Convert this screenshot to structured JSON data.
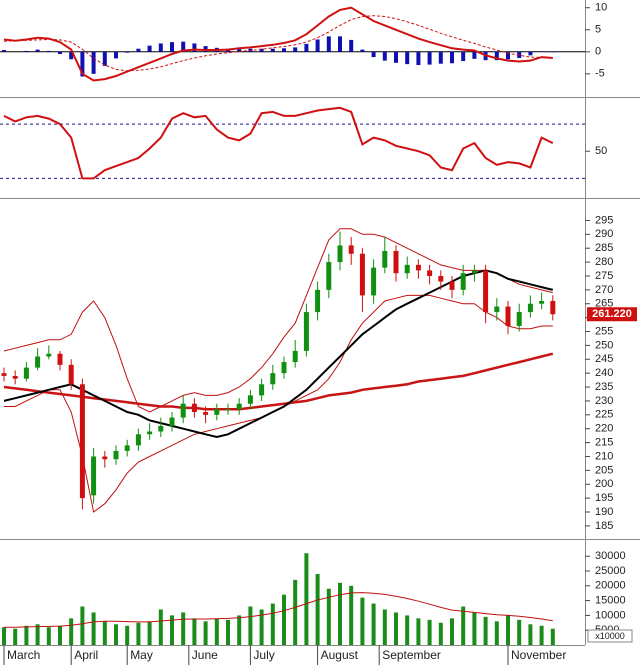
{
  "chart_data": [
    {
      "type": "macd",
      "ylim": [
        -9.8,
        11.3
      ],
      "yticks": [
        10,
        5,
        0,
        -5
      ],
      "colors": {
        "macd": "#d01010",
        "signal": "#d01010",
        "histogram": "#1010b0",
        "zero": "#000000"
      },
      "macd": [
        2.8,
        2.5,
        2.8,
        3.2,
        3,
        2.2,
        0.5,
        -5,
        -6.5,
        -6.2,
        -5.5,
        -4.5,
        -3.5,
        -2.5,
        -1.5,
        -0.5,
        0.3,
        0.5,
        0.4,
        0.4,
        0.5,
        0.8,
        1,
        1.3,
        1.6,
        2,
        2.6,
        4,
        6,
        8,
        9.5,
        10,
        8.5,
        7,
        6,
        5,
        4,
        3,
        2.2,
        1.5,
        0.8,
        0.5,
        0.3,
        -0.8,
        -1.5,
        -2,
        -2.2,
        -2,
        -1.2,
        -1.4
      ],
      "signal": [
        2.4,
        2.5,
        2.6,
        2.7,
        2.8,
        2.7,
        2.2,
        0.6,
        -1.5,
        -3,
        -4,
        -4.3,
        -4.2,
        -3.9,
        -3.4,
        -2.7,
        -2,
        -1.4,
        -0.9,
        -0.5,
        -0.2,
        0.1,
        0.3,
        0.6,
        0.9,
        1.2,
        1.6,
        2.2,
        3.2,
        4.5,
        6,
        7.3,
        8,
        8.2,
        8,
        7.5,
        6.8,
        6,
        5.1,
        4.2,
        3.4,
        2.6,
        1.9,
        1.1,
        0.4,
        -0.3,
        -0.8,
        -1.2,
        -1.3,
        -1.3
      ],
      "histogram": [
        0.4,
        0,
        0.2,
        0.5,
        0.2,
        -0.5,
        -1.7,
        -5.6,
        -5,
        -3.2,
        -1.5,
        -0.2,
        0.7,
        1.4,
        1.9,
        2.2,
        2.3,
        1.9,
        1.3,
        0.9,
        0.7,
        0.7,
        0.7,
        0.7,
        0.7,
        0.8,
        1,
        1.8,
        2.8,
        3.5,
        3.5,
        2.7,
        0.5,
        -1.2,
        -2,
        -2.5,
        -2.8,
        -3,
        -2.9,
        -2.7,
        -2.6,
        -2.1,
        -1.6,
        -1.9,
        -1.9,
        -1.7,
        -1.4,
        -0.8,
        0.1,
        -0.1
      ]
    },
    {
      "type": "rsi",
      "ylim": [
        17,
        87
      ],
      "yticks": [
        50
      ],
      "levels": [
        70,
        30
      ],
      "colors": {
        "rsi": "#d01010",
        "levels": "#1a1a8c"
      },
      "rsi": [
        76,
        72,
        75,
        76,
        74,
        70,
        60,
        30,
        30,
        36,
        39,
        42,
        45,
        52,
        60,
        74,
        78,
        75,
        76,
        66,
        60,
        58,
        63,
        78,
        79,
        76,
        76,
        78,
        80,
        81,
        82,
        79,
        55,
        60,
        58,
        54,
        52,
        50,
        47,
        38,
        36,
        52,
        56,
        45,
        40,
        42,
        41,
        38,
        60,
        56
      ]
    },
    {
      "type": "candlestick",
      "ylim": [
        181,
        302
      ],
      "yticks": [
        185,
        190,
        195,
        200,
        205,
        210,
        215,
        220,
        225,
        230,
        235,
        240,
        245,
        250,
        255,
        260,
        265,
        270,
        275,
        280,
        285,
        290,
        295
      ],
      "colors": {
        "up": "#109010",
        "down": "#d01010",
        "bands": "#c01010",
        "ma_black": "#000000",
        "ma_red": "#c81414",
        "last": "#d01010"
      },
      "open": [
        240,
        239,
        238,
        242,
        246,
        247,
        243,
        236,
        196,
        210,
        209,
        212,
        214,
        218,
        219,
        221,
        224,
        229,
        226,
        225,
        227,
        227,
        229,
        232,
        236,
        240,
        244,
        248,
        262,
        270,
        280,
        286,
        283,
        268,
        278,
        284,
        276,
        279,
        277,
        275,
        273,
        270,
        276,
        277,
        262,
        264,
        257,
        262,
        265,
        266
      ],
      "high": [
        242,
        241,
        244,
        249,
        250,
        248,
        245,
        238,
        213,
        212,
        214,
        216,
        220,
        222,
        224,
        226,
        232,
        231,
        228,
        229,
        229,
        231,
        234,
        238,
        243,
        246,
        252,
        265,
        273,
        283,
        291,
        289,
        285,
        281,
        289,
        286,
        282,
        281,
        279,
        277,
        275,
        279,
        279,
        279,
        267,
        266,
        265,
        268,
        269,
        268
      ],
      "low": [
        237,
        236,
        237,
        241,
        245,
        241,
        234,
        191,
        193,
        206,
        207,
        210,
        212,
        216,
        217,
        219,
        222,
        224,
        222,
        223,
        225,
        225,
        227,
        230,
        234,
        238,
        242,
        246,
        259,
        267,
        277,
        279,
        262,
        265,
        276,
        273,
        274,
        274,
        272,
        270,
        267,
        268,
        273,
        258,
        259,
        254,
        255,
        260,
        263,
        259
      ],
      "close": [
        239,
        238,
        242,
        246,
        247,
        243,
        236,
        195,
        210,
        209,
        212,
        214,
        218,
        219,
        221,
        224,
        229,
        226,
        225,
        227,
        227,
        229,
        232,
        236,
        240,
        244,
        248,
        262,
        270,
        280,
        286,
        283,
        268,
        278,
        284,
        276,
        279,
        277,
        275,
        273,
        270,
        276,
        277,
        262,
        264,
        257,
        262,
        265,
        266,
        261.22
      ],
      "band_upper": [
        248,
        249,
        250,
        251,
        252,
        252,
        254,
        262,
        266,
        260,
        250,
        238,
        228,
        226,
        228,
        230,
        232,
        233,
        232,
        232,
        233,
        235,
        238,
        242,
        247,
        253,
        258,
        268,
        278,
        288,
        292,
        292,
        290,
        290,
        289,
        287,
        285,
        283,
        281,
        279,
        278,
        277,
        277,
        277,
        276,
        274,
        272,
        271,
        270,
        269
      ],
      "band_lower": [
        228,
        228,
        230,
        232,
        234,
        234,
        226,
        210,
        190,
        193,
        198,
        204,
        208,
        210,
        212,
        214,
        216,
        218,
        219,
        220,
        221,
        222,
        223,
        224,
        226,
        228,
        230,
        232,
        234,
        238,
        244,
        252,
        258,
        262,
        266,
        267,
        268,
        268,
        268,
        267,
        266,
        265,
        265,
        262,
        260,
        257,
        256,
        256,
        257,
        257
      ],
      "ma_black": [
        230,
        231,
        232,
        233,
        234,
        235,
        236,
        234,
        232,
        230,
        228,
        226,
        225,
        223,
        222,
        221,
        220,
        219,
        218,
        217,
        218,
        220,
        222,
        224,
        226,
        228,
        231,
        234,
        238,
        242,
        246,
        250,
        254,
        257,
        260,
        263,
        265,
        267,
        269,
        271,
        273,
        275,
        276,
        277,
        276,
        274,
        273,
        272,
        271,
        270
      ],
      "ma_red": [
        235,
        234.5,
        234,
        233.5,
        233,
        232.5,
        232,
        231.5,
        231,
        230.5,
        230,
        229.5,
        229,
        228.5,
        228,
        228,
        227.5,
        227.5,
        227,
        227,
        227,
        227,
        227.5,
        228,
        228.5,
        229,
        229.5,
        230,
        231,
        232,
        232.5,
        233,
        234,
        234.5,
        235,
        235.5,
        236,
        237,
        237.5,
        238,
        238.5,
        239,
        240,
        241,
        242,
        243,
        244,
        245,
        246,
        247
      ],
      "last_price": {
        "value": 261.22,
        "label": "261.220"
      }
    },
    {
      "type": "bar",
      "ylim": [
        0,
        34800
      ],
      "yticks": [
        5000,
        10000,
        15000,
        20000,
        25000,
        30000
      ],
      "unit_label": "x10000",
      "colors": {
        "bar": "#1a8c1a",
        "ma": "#c01010"
      },
      "values": [
        6000,
        5500,
        6500,
        7000,
        6000,
        6500,
        9000,
        13000,
        11000,
        8000,
        7000,
        6500,
        7500,
        8000,
        12000,
        10000,
        11000,
        9000,
        8000,
        9000,
        8500,
        10000,
        13000,
        12000,
        14000,
        17000,
        22000,
        31000,
        24000,
        19000,
        21000,
        20000,
        16000,
        14000,
        12000,
        11000,
        10000,
        9000,
        8500,
        7500,
        9000,
        13000,
        11000,
        9500,
        8000,
        10000,
        8500,
        7000,
        6500,
        5500
      ],
      "ma": [
        6000,
        6000,
        6100,
        6200,
        6300,
        6400,
        6700,
        7200,
        7800,
        8000,
        8000,
        7900,
        7800,
        7800,
        8100,
        8400,
        8700,
        8800,
        8800,
        8900,
        9000,
        9200,
        9600,
        10100,
        10700,
        11600,
        12700,
        14000,
        15200,
        16100,
        17000,
        17600,
        17700,
        17500,
        17100,
        16500,
        15700,
        14800,
        13800,
        12700,
        11800,
        11400,
        11000,
        10600,
        10200,
        10000,
        9700,
        9300,
        8800,
        8200
      ],
      "xticks": [
        {
          "value": 0,
          "label": "March"
        },
        {
          "value": 6,
          "label": "April"
        },
        {
          "value": 11,
          "label": "May"
        },
        {
          "value": 16.5,
          "label": "June"
        },
        {
          "value": 22,
          "label": "July"
        },
        {
          "value": 28,
          "label": "August"
        },
        {
          "value": 33.5,
          "label": "September"
        },
        {
          "value": 45,
          "label": "November"
        }
      ]
    }
  ]
}
